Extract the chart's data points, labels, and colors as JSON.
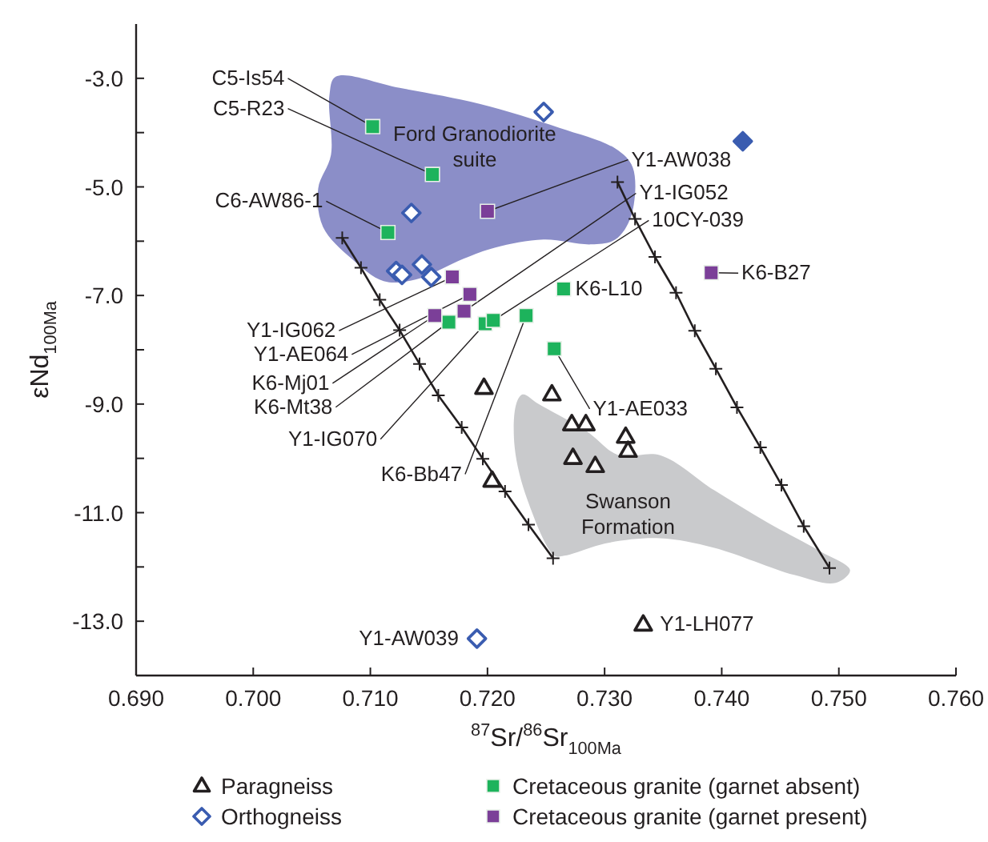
{
  "chart_data": {
    "type": "scatter",
    "xlabel": "$^{87}$Sr/$^{86}$Sr$_{100Ma}$",
    "ylabel": "εNd$_{100Ma}$",
    "xlim": [
      0.69,
      0.76
    ],
    "ylim": [
      -14,
      -2
    ],
    "xticks": [
      {
        "value": 0.69,
        "label": "0.690"
      },
      {
        "value": 0.7,
        "label": "0.700"
      },
      {
        "value": 0.71,
        "label": "0.710"
      },
      {
        "value": 0.72,
        "label": "0.720"
      },
      {
        "value": 0.73,
        "label": "0.730"
      },
      {
        "value": 0.74,
        "label": "0.740"
      },
      {
        "value": 0.75,
        "label": "0.750"
      },
      {
        "value": 0.76,
        "label": "0.760"
      }
    ],
    "yticks": [
      {
        "value": -13,
        "label": "-13.0"
      },
      {
        "value": -12,
        "label": null
      },
      {
        "value": -11,
        "label": "-11.0"
      },
      {
        "value": -10,
        "label": null
      },
      {
        "value": -9,
        "label": "-9.0"
      },
      {
        "value": -8,
        "label": null
      },
      {
        "value": -7,
        "label": "-7.0"
      },
      {
        "value": -6,
        "label": null
      },
      {
        "value": -5,
        "label": "-5.0"
      },
      {
        "value": -4,
        "label": null
      },
      {
        "value": -3,
        "label": "-3.0"
      }
    ],
    "grid": false,
    "legend": "bottom",
    "series": [
      {
        "type": "line",
        "marker": "cross",
        "color": "#231f20",
        "x": [
          0.7076,
          0.7092,
          0.7108,
          0.7125,
          0.7142,
          0.7158,
          0.7178,
          0.7196,
          0.7215,
          0.7235,
          0.7256
        ],
        "values": [
          -5.94,
          -6.49,
          -7.08,
          -7.64,
          -8.26,
          -8.84,
          -9.43,
          -10.01,
          -10.61,
          -11.22,
          -11.84
        ]
      },
      {
        "type": "line",
        "marker": "cross",
        "color": "#231f20",
        "x": [
          0.7311,
          0.7326,
          0.7343,
          0.7361,
          0.7377,
          0.7395,
          0.7413,
          0.7433,
          0.7451,
          0.747,
          0.7492
        ],
        "values": [
          -4.91,
          -5.59,
          -6.29,
          -6.95,
          -7.65,
          -8.35,
          -9.06,
          -9.8,
          -10.49,
          -11.25,
          -12.02
        ]
      },
      {
        "name": "Paragneiss",
        "marker": "triangle",
        "color": "#231f20",
        "x": [
          0.7255,
          0.7197,
          0.7272,
          0.7284,
          0.7318,
          0.732,
          0.7273,
          0.7292,
          0.7204,
          0.7333
        ],
        "values": [
          -8.82,
          -8.7,
          -9.37,
          -9.37,
          -9.6,
          -9.86,
          -9.99,
          -10.14,
          -10.41,
          -13.06
        ]
      },
      {
        "name": "Orthogneiss",
        "marker": "diamond",
        "color": "#3a5cb0",
        "x": [
          0.7248,
          0.7135,
          0.7122,
          0.7127,
          0.7144,
          0.7152,
          0.7191
        ],
        "values": [
          -3.62,
          -5.48,
          -6.55,
          -6.62,
          -6.43,
          -6.66,
          -13.32
        ]
      },
      {
        "marker": "diamond",
        "color": "#3a5cb0",
        "x": [
          0.7418
        ],
        "values": [
          -4.16
        ]
      },
      {
        "name": "Cretaceous granite (garnet absent)",
        "marker": "square",
        "color": "#1db35c",
        "x": [
          0.7102,
          0.7153,
          0.7115,
          0.7167,
          0.7198,
          0.7205,
          0.7233,
          0.7265,
          0.7257
        ],
        "values": [
          -3.89,
          -4.77,
          -5.84,
          -7.49,
          -7.52,
          -7.46,
          -7.37,
          -6.88,
          -7.98
        ]
      },
      {
        "name": "Cretaceous granite (garnet present)",
        "marker": "square",
        "color": "#7b3f98",
        "x": [
          0.72,
          0.717,
          0.7185,
          0.7155,
          0.718,
          0.7391
        ],
        "values": [
          -5.45,
          -6.66,
          -6.98,
          -7.37,
          -7.29,
          -6.58
        ]
      }
    ],
    "annotations": [
      {
        "text": "C5-Is54",
        "x": 0.7102,
        "y": -3.89
      },
      {
        "text": "C5-R23",
        "x": 0.7153,
        "y": -4.77
      },
      {
        "text": "C6-AW86-1",
        "x": 0.7115,
        "y": -5.84
      },
      {
        "text": "Y1-AW038",
        "x": 0.72,
        "y": -5.45
      },
      {
        "text": "Y1-IG052",
        "x": 0.718,
        "y": -7.29
      },
      {
        "text": "10CY-039",
        "x": 0.7205,
        "y": -7.46
      },
      {
        "text": "K6-B27",
        "x": 0.7391,
        "y": -6.58
      },
      {
        "text": "K6-L10",
        "x": 0.7265,
        "y": -6.88
      },
      {
        "text": "Y1-IG062",
        "x": 0.717,
        "y": -6.66
      },
      {
        "text": "Y1-AE064",
        "x": 0.7185,
        "y": -6.98
      },
      {
        "text": "K6-Mj01",
        "x": 0.7155,
        "y": -7.37
      },
      {
        "text": "K6-Mt38",
        "x": 0.7167,
        "y": -7.49
      },
      {
        "text": "Y1-IG070",
        "x": 0.7198,
        "y": -7.52
      },
      {
        "text": "K6-Bb47",
        "x": 0.7233,
        "y": -7.37
      },
      {
        "text": "Y1-AE033",
        "x": 0.7257,
        "y": -7.98
      },
      {
        "text": "Y1-AW039",
        "x": 0.7191,
        "y": -13.32
      },
      {
        "text": "Y1-LH077",
        "x": 0.7333,
        "y": -13.06
      },
      "Ford Granodiorite\nsuite",
      "Swanson\nFormation"
    ]
  }
}
